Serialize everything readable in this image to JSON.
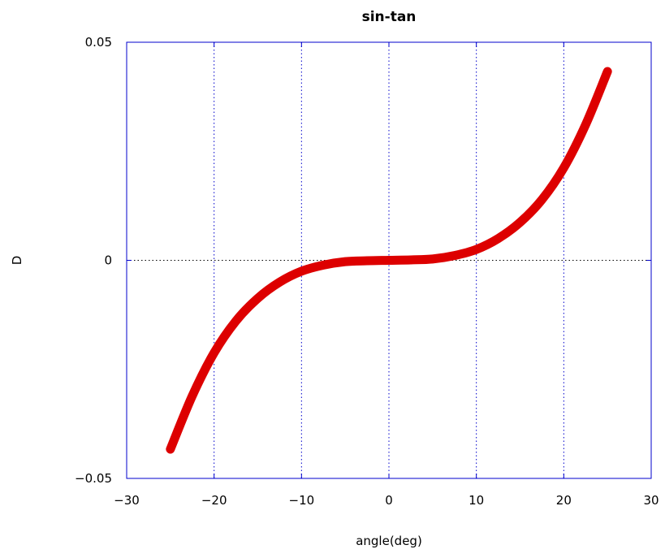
{
  "chart_data": {
    "type": "line",
    "title": "sin-tan",
    "xlabel": "angle(deg)",
    "ylabel": "D",
    "xlim": [
      -30,
      30
    ],
    "ylim": [
      -0.05,
      0.05
    ],
    "x_ticks": [
      -30,
      -20,
      -10,
      0,
      10,
      20,
      30
    ],
    "x_tick_labels": [
      "−30",
      "−20",
      "−10",
      "0",
      "10",
      "20",
      "30"
    ],
    "y_ticks": [
      -0.05,
      0,
      0.05
    ],
    "y_tick_labels": [
      "−0.05",
      "0",
      "0.05"
    ],
    "grid": true,
    "series": [
      {
        "x": [
          -25,
          -22.5,
          -20,
          -17.5,
          -15,
          -12.5,
          -10,
          -7.5,
          -5,
          -2.5,
          0,
          2.5,
          5,
          7.5,
          10,
          12.5,
          15,
          17.5,
          20,
          22.5,
          25
        ],
        "y": [
          -0.0433,
          -0.0311,
          -0.0212,
          -0.0139,
          -0.0087,
          -0.005,
          -0.0025,
          -0.0011,
          -0.0003,
          -0.0001,
          0.0,
          0.0001,
          0.0003,
          0.0011,
          0.0025,
          0.005,
          0.0087,
          0.0139,
          0.0212,
          0.0311,
          0.0433
        ]
      }
    ]
  },
  "colors": {
    "series": "#dd0000",
    "frame": "#0000cc",
    "grid": "#0000cc",
    "zero_line": "#000000"
  }
}
